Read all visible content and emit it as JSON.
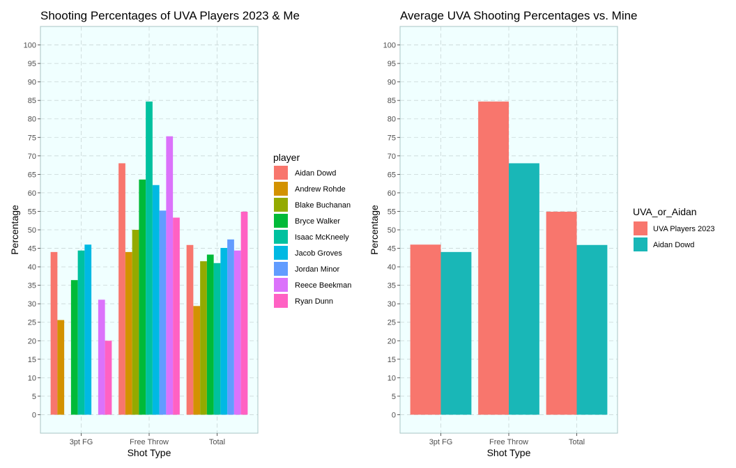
{
  "chart_data": [
    {
      "type": "bar",
      "title": "Shooting Percentages of UVA Players 2023 & Me",
      "xlabel": "Shot Type",
      "ylabel": "Percentage",
      "ylim": [
        -5,
        105
      ],
      "yticks": [
        0,
        5,
        10,
        15,
        20,
        25,
        30,
        35,
        40,
        45,
        50,
        55,
        60,
        65,
        70,
        75,
        80,
        85,
        90,
        95,
        100
      ],
      "categories": [
        "3pt FG",
        "Free Throw",
        "Total"
      ],
      "grid": true,
      "background": "#F0FFFF",
      "legend": {
        "title": "player",
        "placement": "right"
      },
      "series": [
        {
          "name": "Aidan Dowd",
          "color": "#F8766D",
          "values": [
            44,
            68,
            45.9
          ]
        },
        {
          "name": "Andrew Rohde",
          "color": "#D39200",
          "values": [
            25.6,
            44,
            29.4
          ]
        },
        {
          "name": "Blake Buchanan",
          "color": "#93AA00",
          "values": [
            null,
            50,
            41.5
          ]
        },
        {
          "name": "Bryce Walker",
          "color": "#00BA38",
          "values": [
            36.4,
            63.6,
            43.3
          ]
        },
        {
          "name": "Isaac McKneely",
          "color": "#00C19F",
          "values": [
            44.4,
            84.7,
            41
          ]
        },
        {
          "name": "Jacob Groves",
          "color": "#00B9E3",
          "values": [
            46,
            62.1,
            45.1
          ]
        },
        {
          "name": "Jordan Minor",
          "color": "#619CFF",
          "values": [
            null,
            55.2,
            47.4
          ]
        },
        {
          "name": "Reece Beekman",
          "color": "#DB72FB",
          "values": [
            31.1,
            75.3,
            44.4
          ]
        },
        {
          "name": "Ryan Dunn",
          "color": "#FF61C3",
          "values": [
            20,
            53.3,
            54.9
          ]
        }
      ]
    },
    {
      "type": "bar",
      "title": "Average UVA Shooting Percentages vs. Mine",
      "xlabel": "Shot Type",
      "ylabel": "Percentage",
      "ylim": [
        -5,
        105
      ],
      "yticks": [
        0,
        5,
        10,
        15,
        20,
        25,
        30,
        35,
        40,
        45,
        50,
        55,
        60,
        65,
        70,
        75,
        80,
        85,
        90,
        95,
        100
      ],
      "categories": [
        "3pt FG",
        "Free Throw",
        "Total"
      ],
      "grid": true,
      "background": "#F0FFFF",
      "legend": {
        "title": "UVA_or_Aidan",
        "placement": "right"
      },
      "series": [
        {
          "name": "UVA Players 2023",
          "color": "#F8766D",
          "values": [
            46,
            84.7,
            54.9
          ]
        },
        {
          "name": "Aidan Dowd",
          "color": "#19B7B7",
          "values": [
            44,
            68,
            45.9
          ]
        }
      ]
    }
  ]
}
